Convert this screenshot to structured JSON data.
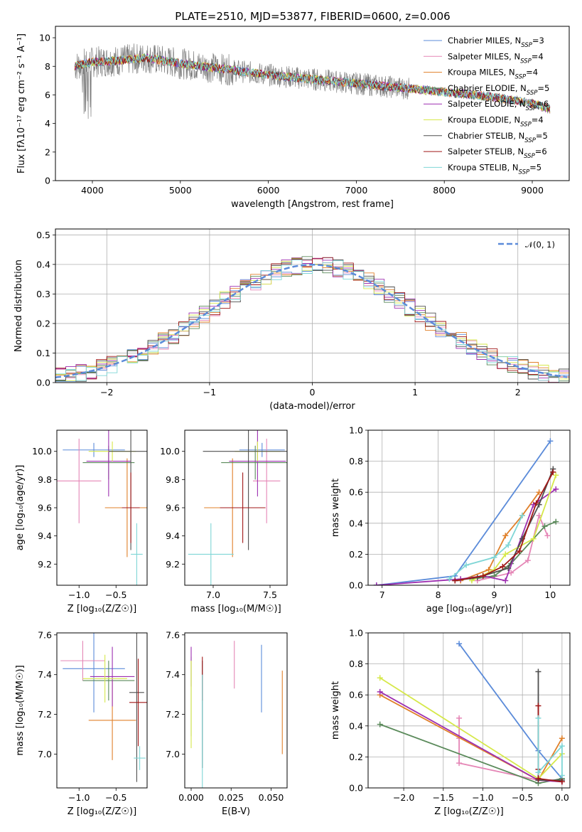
{
  "title": "PLATE=2510, MJD=53877, FIBERID=0600, z=0.006",
  "models": [
    {
      "name": "Chabrier MILES",
      "nssp": 3,
      "color": "#5b8bd9"
    },
    {
      "name": "Salpeter MILES",
      "nssp": 4,
      "color": "#e586b6"
    },
    {
      "name": "Kroupa MILES",
      "nssp": 4,
      "color": "#e0802a"
    },
    {
      "name": "Chabrier ELODIE",
      "nssp": 5,
      "color": "#5a8a5a"
    },
    {
      "name": "Salpeter ELODIE",
      "nssp": 6,
      "color": "#9d2fb0"
    },
    {
      "name": "Kroupa ELODIE",
      "nssp": 4,
      "color": "#d6e84a"
    },
    {
      "name": "Chabrier STELIB",
      "nssp": 5,
      "color": "#4f4f4f"
    },
    {
      "name": "Salpeter STELIB",
      "nssp": 6,
      "color": "#a11717"
    },
    {
      "name": "Kroupa STELIB",
      "nssp": 5,
      "color": "#7fd6d6"
    }
  ],
  "chart_data": [
    {
      "id": "spectrum",
      "type": "line",
      "title": "PLATE=2510, MJD=53877, FIBERID=0600, z=0.006",
      "xlabel": "wavelength [Angstrom, rest frame]",
      "ylabel": "Flux [fλ10⁻¹⁷ erg cm⁻² s⁻¹ A⁻¹]",
      "xlim": [
        3580,
        9420
      ],
      "ylim": [
        0,
        10.8
      ],
      "xticks": [
        4000,
        5000,
        6000,
        7000,
        8000,
        9000
      ],
      "yticks": [
        0,
        2,
        4,
        6,
        8,
        10
      ],
      "continuum": {
        "x": [
          3800,
          4000,
          4300,
          4600,
          5000,
          5500,
          6000,
          6500,
          7000,
          7500,
          8000,
          8500,
          9000,
          9200
        ],
        "y": [
          8.0,
          8.3,
          8.4,
          8.6,
          8.2,
          7.8,
          7.4,
          7.1,
          6.8,
          6.5,
          6.2,
          5.9,
          5.4,
          5.0
        ]
      },
      "legend_loc": "upper right"
    },
    {
      "id": "residuals",
      "type": "histogram",
      "xlabel": "(data-model)/error",
      "ylabel": "Normed distribution",
      "xlim": [
        -2.5,
        2.5
      ],
      "ylim": [
        0,
        0.52
      ],
      "xticks": [
        -2,
        -1,
        0,
        1,
        2
      ],
      "yticks": [
        0,
        0.1,
        0.2,
        0.3,
        0.4,
        0.5
      ],
      "bin_width": 0.1,
      "reference": {
        "name": "𝒩(0, 1)",
        "style": "dashed",
        "color": "#5b8bd9"
      },
      "grid": true,
      "legend_loc": "upper right"
    },
    {
      "id": "age-vs-Z",
      "type": "errorbar",
      "xlabel": "Z [log₁₀(Z/Z☉)]",
      "ylabel": "age  [log₁₀(age/yr)]",
      "xlim": [
        -1.3,
        -0.08
      ],
      "ylim": [
        9.05,
        10.15
      ],
      "xticks": [
        -1.0,
        -0.5
      ],
      "yticks": [
        9.2,
        9.4,
        9.6,
        9.8,
        10.0
      ],
      "points": [
        {
          "x": -0.8,
          "xerr": 0.42,
          "y": 10.01,
          "yerr": 0.05
        },
        {
          "x": -1.0,
          "xerr": 0.3,
          "y": 9.79,
          "yerr": 0.3
        },
        {
          "x": -0.35,
          "xerr": 0.3,
          "y": 9.6,
          "yerr": 0.35
        },
        {
          "x": -0.6,
          "xerr": 0.35,
          "y": 9.92,
          "yerr": 0.12
        },
        {
          "x": -0.6,
          "xerr": 0.3,
          "y": 9.93,
          "yerr": 0.25
        },
        {
          "x": -0.55,
          "xerr": 0.32,
          "y": 10.0,
          "yerr": 0.07
        },
        {
          "x": -0.3,
          "xerr": 0.3,
          "y": 10.0,
          "yerr": 0.7
        },
        {
          "x": -0.3,
          "xerr": 0.12,
          "y": 9.6,
          "yerr": 0.25
        },
        {
          "x": -0.22,
          "xerr": 0.08,
          "y": 9.27,
          "yerr": 0.22
        }
      ]
    },
    {
      "id": "age-vs-mass",
      "type": "errorbar",
      "xlabel": "mass [log₁₀(M/M☉)]",
      "ylabel": "",
      "xlim": [
        6.75,
        7.65
      ],
      "ylim": [
        9.05,
        10.15
      ],
      "xticks": [
        7.0,
        7.5
      ],
      "yticks": [
        9.2,
        9.4,
        9.6,
        9.8,
        10.0
      ],
      "points": [
        {
          "x": 7.43,
          "xerr": 0.2,
          "y": 10.01,
          "yerr": 0.05
        },
        {
          "x": 7.47,
          "xerr": 0.12,
          "y": 9.79,
          "yerr": 0.3
        },
        {
          "x": 7.17,
          "xerr": 0.25,
          "y": 9.6,
          "yerr": 0.35
        },
        {
          "x": 7.37,
          "xerr": 0.3,
          "y": 9.92,
          "yerr": 0.12
        },
        {
          "x": 7.39,
          "xerr": 0.25,
          "y": 9.93,
          "yerr": 0.25
        },
        {
          "x": 7.39,
          "xerr": 0.2,
          "y": 10.0,
          "yerr": 0.07
        },
        {
          "x": 7.31,
          "xerr": 0.4,
          "y": 10.0,
          "yerr": 0.7
        },
        {
          "x": 7.26,
          "xerr": 0.2,
          "y": 9.6,
          "yerr": 0.25
        },
        {
          "x": 6.98,
          "xerr": 0.2,
          "y": 9.27,
          "yerr": 0.22
        }
      ]
    },
    {
      "id": "mass-weight-vs-age",
      "type": "line",
      "xlabel": "age  [log₁₀(age/yr)]",
      "ylabel": "mass weight",
      "xlim": [
        6.75,
        10.35
      ],
      "ylim": [
        0,
        1.0
      ],
      "xticks": [
        7,
        8,
        9,
        10
      ],
      "yticks": [
        0.0,
        0.2,
        0.4,
        0.6,
        0.8,
        1.0
      ],
      "grid": true,
      "series": [
        {
          "x": [
            6.9,
            8.3,
            10.0
          ],
          "y": [
            0.0,
            0.06,
            0.93
          ]
        },
        {
          "x": [
            8.7,
            9.3,
            9.6,
            9.8,
            9.95
          ],
          "y": [
            0.03,
            0.08,
            0.16,
            0.45,
            0.32
          ]
        },
        {
          "x": [
            8.4,
            8.9,
            9.2,
            9.5,
            9.8
          ],
          "y": [
            0.03,
            0.1,
            0.32,
            0.45,
            0.6
          ]
        },
        {
          "x": [
            8.6,
            9.0,
            9.3,
            9.9,
            10.1
          ],
          "y": [
            0.04,
            0.06,
            0.14,
            0.38,
            0.41
          ]
        },
        {
          "x": [
            6.9,
            8.4,
            8.8,
            9.2,
            9.7,
            10.1
          ],
          "y": [
            0.0,
            0.04,
            0.06,
            0.03,
            0.52,
            0.62
          ]
        },
        {
          "x": [
            8.6,
            9.0,
            9.2,
            9.7,
            10.1
          ],
          "y": [
            0.03,
            0.1,
            0.2,
            0.3,
            0.71
          ]
        },
        {
          "x": [
            8.3,
            8.7,
            9.25,
            9.5,
            9.8,
            10.05
          ],
          "y": [
            0.03,
            0.05,
            0.11,
            0.3,
            0.52,
            0.75
          ]
        },
        {
          "x": [
            8.3,
            8.8,
            9.15,
            9.45,
            9.75,
            10.05
          ],
          "y": [
            0.03,
            0.06,
            0.12,
            0.22,
            0.53,
            0.73
          ]
        },
        {
          "x": [
            8.2,
            8.5,
            9.0,
            9.25,
            9.5
          ],
          "y": [
            0.04,
            0.13,
            0.18,
            0.26,
            0.45
          ]
        }
      ]
    },
    {
      "id": "mass-vs-Z",
      "type": "errorbar",
      "xlabel": "Z [log₁₀(Z/Z☉)]",
      "ylabel": "mass [log₁₀(M/M☉)]",
      "xlim": [
        -1.3,
        -0.08
      ],
      "ylim": [
        6.83,
        7.61
      ],
      "xticks": [
        -1.0,
        -0.5
      ],
      "yticks": [
        7.0,
        7.2,
        7.4,
        7.6
      ],
      "points": [
        {
          "x": -0.8,
          "xerr": 0.42,
          "y": 7.43,
          "yerr": 0.22
        },
        {
          "x": -0.95,
          "xerr": 0.3,
          "y": 7.47,
          "yerr": 0.1
        },
        {
          "x": -0.55,
          "xerr": 0.32,
          "y": 7.17,
          "yerr": 0.2
        },
        {
          "x": -0.6,
          "xerr": 0.35,
          "y": 7.37,
          "yerr": 0.1
        },
        {
          "x": -0.55,
          "xerr": 0.3,
          "y": 7.39,
          "yerr": 0.15
        },
        {
          "x": -0.65,
          "xerr": 0.3,
          "y": 7.38,
          "yerr": 0.12
        },
        {
          "x": -0.22,
          "xerr": 0.1,
          "y": 7.31,
          "yerr": 0.45
        },
        {
          "x": -0.2,
          "xerr": 0.12,
          "y": 7.26,
          "yerr": 0.22
        },
        {
          "x": -0.18,
          "xerr": 0.08,
          "y": 6.98,
          "yerr": 0.06
        }
      ]
    },
    {
      "id": "mass-vs-EBV",
      "type": "errorbar",
      "xlabel": "E(B-V)",
      "ylabel": "",
      "xlim": [
        -0.004,
        0.06
      ],
      "ylim": [
        6.83,
        7.61
      ],
      "xticks": [
        0.0,
        0.025,
        0.05
      ],
      "yticks": [
        7.0,
        7.2,
        7.4,
        7.6
      ],
      "points": [
        {
          "x": 0.044,
          "y": 7.38,
          "yerr": 0.17
        },
        {
          "x": 0.027,
          "y": 7.45,
          "yerr": 0.12
        },
        {
          "x": 0.057,
          "y": 7.21,
          "yerr": 0.21
        },
        {
          "x": 0.0,
          "y": 7.29,
          "yerr": 0.2
        },
        {
          "x": 0.0,
          "y": 7.44,
          "yerr": 0.1
        },
        {
          "x": 0.0,
          "y": 7.25,
          "yerr": 0.22
        },
        {
          "x": 0.007,
          "y": 7.2,
          "yerr": 0.27
        },
        {
          "x": 0.007,
          "y": 7.38,
          "yerr": 0.11
        },
        {
          "x": 0.007,
          "y": 7.1,
          "yerr": 0.3
        }
      ]
    },
    {
      "id": "mass-weight-vs-Z",
      "type": "line",
      "xlabel": "Z [log₁₀(Z/Z☉)]",
      "ylabel": "mass weight",
      "xlim": [
        -2.45,
        0.1
      ],
      "ylim": [
        0,
        1.0
      ],
      "xticks": [
        -2.0,
        -1.5,
        -1.0,
        -0.5,
        0.0
      ],
      "yticks": [
        0.0,
        0.2,
        0.4,
        0.6,
        0.8,
        1.0
      ],
      "grid": true,
      "series": [
        {
          "x": [
            -1.3,
            -0.3,
            0.0
          ],
          "y": [
            0.93,
            0.24,
            0.06
          ]
        },
        {
          "x": [
            -1.3,
            -1.3,
            -1.3,
            -0.3,
            0.0
          ],
          "y": [
            0.45,
            0.32,
            0.16,
            0.05,
            0.04
          ]
        },
        {
          "x": [
            -2.3,
            -0.3,
            0.0
          ],
          "y": [
            0.6,
            0.05,
            0.32
          ]
        },
        {
          "x": [
            -2.3,
            -0.3,
            0.0
          ],
          "y": [
            0.41,
            0.03,
            0.06
          ]
        },
        {
          "x": [
            -2.3,
            -0.3,
            0.0
          ],
          "y": [
            0.62,
            0.05,
            0.04
          ]
        },
        {
          "x": [
            -2.3,
            -0.3,
            0.0
          ],
          "y": [
            0.71,
            0.06,
            0.22
          ]
        },
        {
          "x": [
            -0.3,
            -0.3,
            0.0
          ],
          "y": [
            0.75,
            0.05,
            0.05
          ]
        },
        {
          "x": [
            -0.3,
            -0.3,
            -0.3,
            0.0
          ],
          "y": [
            0.53,
            0.12,
            0.06,
            0.04
          ]
        },
        {
          "x": [
            -0.3,
            -0.3,
            0.0,
            0.0
          ],
          "y": [
            0.45,
            0.1,
            0.27,
            0.08
          ]
        }
      ]
    }
  ]
}
